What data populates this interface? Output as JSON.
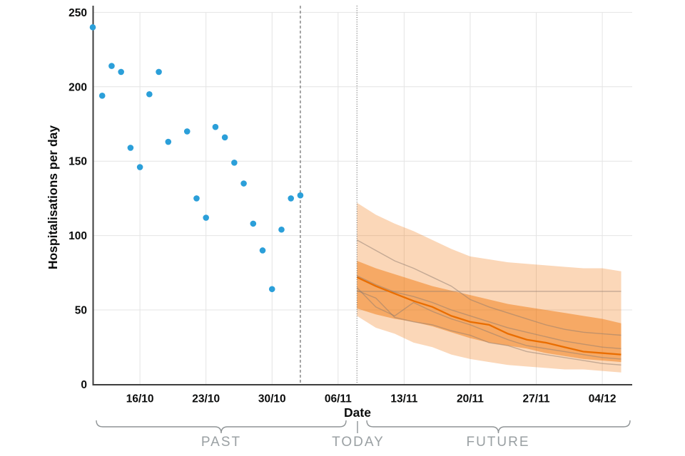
{
  "chart_data": {
    "type": "scatter",
    "title": "",
    "xlabel": "Date",
    "ylabel": "Hospitalisations per day",
    "ylim": [
      0,
      250
    ],
    "grid": true,
    "yticks": [
      {
        "value": 0,
        "label": "0"
      },
      {
        "value": 50,
        "label": "50"
      },
      {
        "value": 100,
        "label": "100"
      },
      {
        "value": 150,
        "label": "150"
      },
      {
        "value": 200,
        "label": "200"
      },
      {
        "value": 250,
        "label": "250"
      }
    ],
    "xticks": [
      {
        "day": 5,
        "label": "16/10"
      },
      {
        "day": 12,
        "label": "23/10"
      },
      {
        "day": 19,
        "label": "30/10"
      },
      {
        "day": 26,
        "label": "06/11"
      },
      {
        "day": 33,
        "label": "13/11"
      },
      {
        "day": 40,
        "label": "20/11"
      },
      {
        "day": 47,
        "label": "27/11"
      },
      {
        "day": 54,
        "label": "04/12"
      }
    ],
    "observed": {
      "name": "observed-hospitalisations",
      "color": "#2B9FD9",
      "points": [
        {
          "date": "11/10",
          "day": 0,
          "value": 240
        },
        {
          "date": "12/10",
          "day": 1,
          "value": 194
        },
        {
          "date": "13/10",
          "day": 2,
          "value": 214
        },
        {
          "date": "14/10",
          "day": 3,
          "value": 210
        },
        {
          "date": "15/10",
          "day": 4,
          "value": 159
        },
        {
          "date": "16/10",
          "day": 5,
          "value": 146
        },
        {
          "date": "17/10",
          "day": 6,
          "value": 195
        },
        {
          "date": "18/10",
          "day": 7,
          "value": 210
        },
        {
          "date": "19/10",
          "day": 8,
          "value": 163
        },
        {
          "date": "21/10",
          "day": 10,
          "value": 170
        },
        {
          "date": "22/10",
          "day": 11,
          "value": 125
        },
        {
          "date": "23/10",
          "day": 12,
          "value": 112
        },
        {
          "date": "24/10",
          "day": 13,
          "value": 173
        },
        {
          "date": "25/10",
          "day": 14,
          "value": 166
        },
        {
          "date": "26/10",
          "day": 15,
          "value": 149
        },
        {
          "date": "27/10",
          "day": 16,
          "value": 135
        },
        {
          "date": "28/10",
          "day": 17,
          "value": 108
        },
        {
          "date": "29/10",
          "day": 18,
          "value": 90
        },
        {
          "date": "30/10",
          "day": 19,
          "value": 64
        },
        {
          "date": "31/10",
          "day": 20,
          "value": 104
        },
        {
          "date": "01/11",
          "day": 21,
          "value": 125
        },
        {
          "date": "02/11",
          "day": 22,
          "value": 127
        }
      ]
    },
    "markers": {
      "data_cutoff_day": 22,
      "today_day": 28,
      "line_color": "#6b6b6b"
    },
    "forecast": {
      "band_color": "#F07000",
      "outer_band_opacity": 0.28,
      "inner_band_opacity": 0.45,
      "median_color": "#E96D00",
      "trajectory_color": "#8D7B70",
      "days": [
        28,
        30,
        32,
        34,
        36,
        38,
        40,
        42,
        44,
        46,
        48,
        50,
        52,
        54,
        56
      ],
      "outer_top": [
        122,
        114,
        108,
        103,
        97,
        91,
        86,
        84,
        82,
        81,
        80,
        79,
        78,
        78,
        76
      ],
      "inner_top": [
        83,
        78,
        74,
        70,
        66,
        63,
        60,
        57,
        54,
        52,
        50,
        48,
        46,
        44,
        41
      ],
      "median": [
        72,
        66,
        61,
        56,
        52,
        46,
        42,
        40,
        34,
        30,
        28,
        25,
        22,
        21,
        20
      ],
      "inner_bottom": [
        51,
        47,
        44,
        42,
        39,
        35,
        31,
        28,
        26,
        24,
        21,
        19,
        17,
        16,
        15
      ],
      "outer_bottom": [
        46,
        38,
        34,
        28,
        25,
        20,
        17,
        15,
        13,
        12,
        11,
        10,
        10,
        9,
        8
      ],
      "flat_trajectory_value": 62.5,
      "trajectories": [
        [
          97,
          90,
          83,
          78,
          72,
          66,
          57,
          52,
          48,
          44,
          40,
          37,
          35,
          34,
          33
        ],
        [
          73,
          67,
          62,
          59,
          55,
          50,
          46,
          42,
          38,
          35,
          32,
          29,
          27,
          25,
          24
        ],
        [
          65,
          52,
          46,
          55,
          49,
          44,
          40,
          35,
          30,
          26,
          24,
          22,
          20,
          18,
          17
        ],
        [
          63,
          58,
          45,
          42,
          40,
          36,
          33,
          28,
          26,
          22,
          20,
          18,
          16,
          14,
          13
        ]
      ]
    },
    "zones": {
      "past": "PAST",
      "today": "TODAY",
      "future": "FUTURE"
    }
  }
}
